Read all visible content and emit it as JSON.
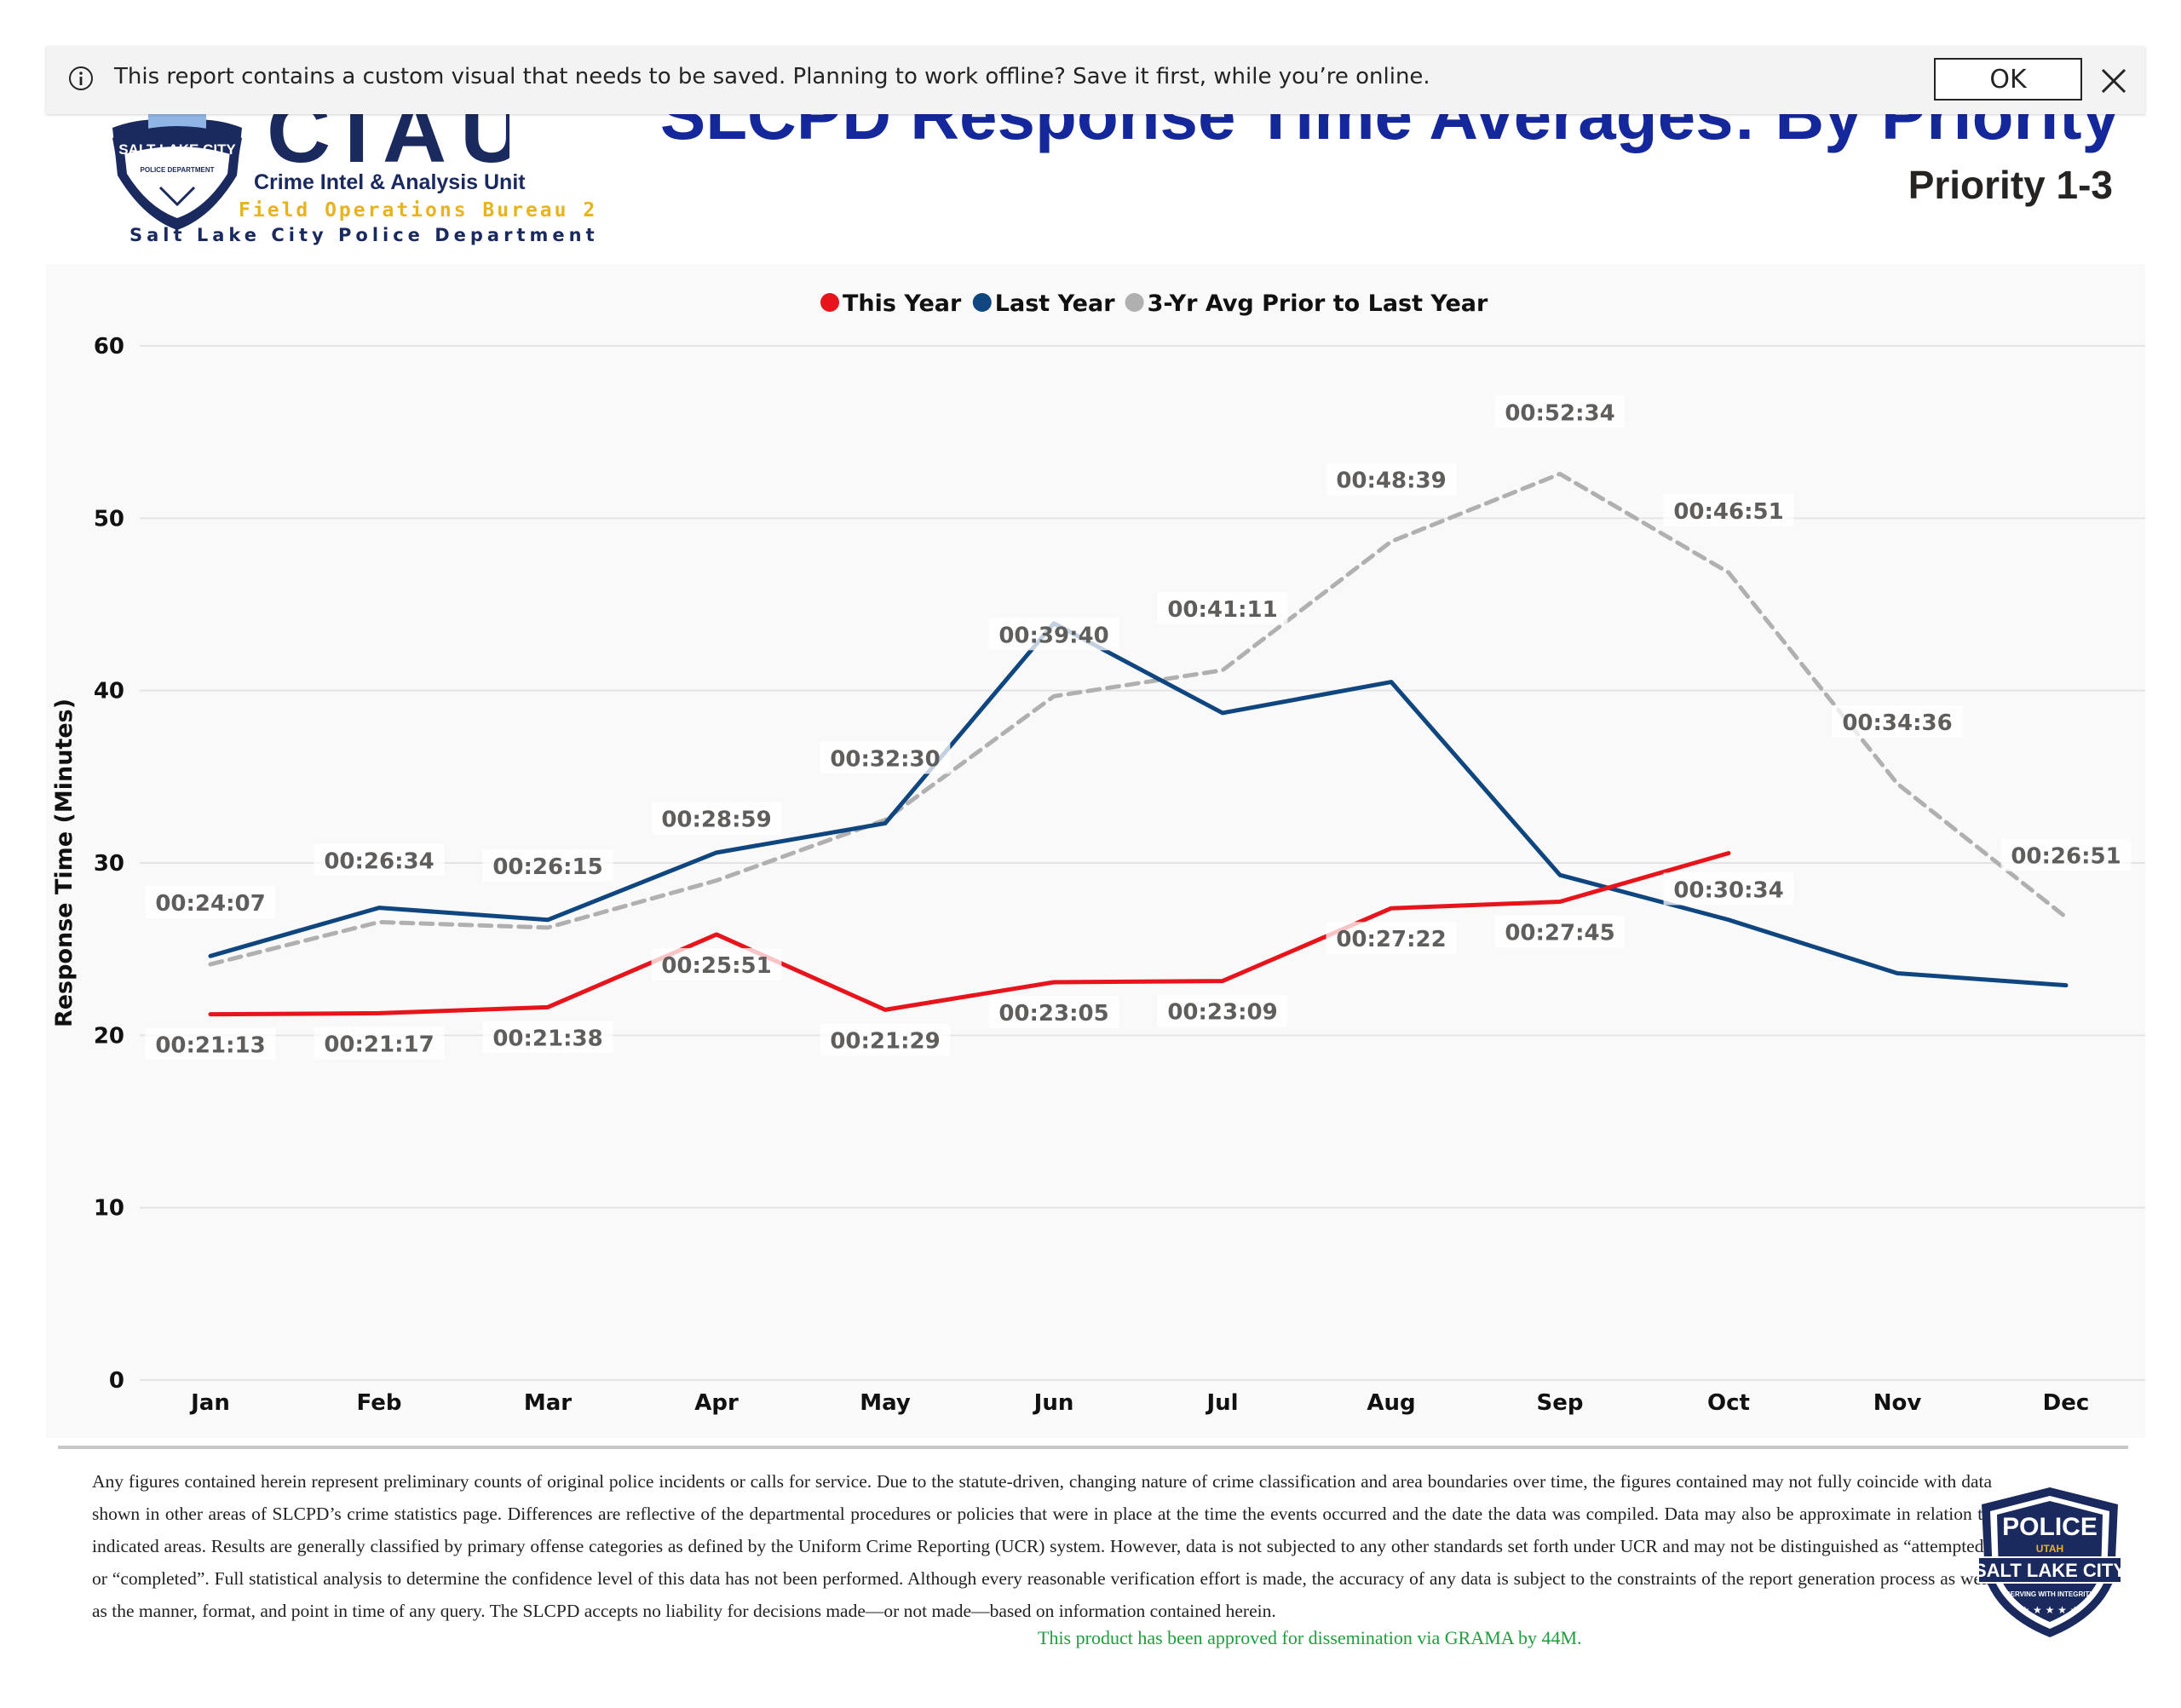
{
  "notification": {
    "message": "This report contains a custom visual that needs to be saved. Planning to work offline? Save it first, while you’re online.",
    "ok_label": "OK"
  },
  "header": {
    "logo_acronym": "CIAU",
    "logo_badge_text": "SALT LAKE CITY",
    "logo_badge_sub": "POLICE DEPARTMENT",
    "unit_name": "Crime Intel & Analysis Unit",
    "bureau": "Field Operations Bureau 2",
    "department": "Salt Lake City Police Department",
    "title": "SLCPD Response Time Averages: By Priority",
    "subtitle": "Priority 1-3"
  },
  "chart_data": {
    "type": "line",
    "ylabel": "Response Time (Minutes)",
    "ylim": [
      0,
      60
    ],
    "yticks": [
      0,
      10,
      20,
      30,
      40,
      50,
      60
    ],
    "grid": true,
    "legend_position": "top-center",
    "categories": [
      "Jan",
      "Feb",
      "Mar",
      "Apr",
      "May",
      "Jun",
      "Jul",
      "Aug",
      "Sep",
      "Oct",
      "Nov",
      "Dec"
    ],
    "series": [
      {
        "name": "This Year",
        "color": "#e8141c",
        "style": "solid",
        "values": [
          21.22,
          21.28,
          21.63,
          25.85,
          21.48,
          23.08,
          23.15,
          27.37,
          27.75,
          30.57,
          null,
          null
        ],
        "labels": [
          "00:21:13",
          "00:21:17",
          "00:21:38",
          "00:25:51",
          "00:21:29",
          "00:23:05",
          "00:23:09",
          "00:27:22",
          "00:27:45",
          "00:30:34",
          null,
          null
        ]
      },
      {
        "name": "Last Year",
        "color": "#0f4680",
        "style": "solid",
        "values": [
          24.6,
          27.4,
          26.7,
          30.6,
          32.3,
          43.9,
          38.7,
          40.5,
          29.3,
          26.7,
          23.6,
          22.9
        ],
        "labels": [
          null,
          null,
          null,
          null,
          null,
          null,
          null,
          null,
          null,
          null,
          null,
          null
        ]
      },
      {
        "name": "3-Yr Avg Prior to Last Year",
        "color": "#b0b0b0",
        "style": "dashed",
        "values": [
          24.12,
          26.57,
          26.25,
          28.98,
          32.5,
          39.67,
          41.18,
          48.65,
          52.57,
          46.85,
          34.6,
          26.85
        ],
        "labels": [
          "00:24:07",
          "00:26:34",
          "00:26:15",
          "00:28:59",
          "00:32:30",
          "00:39:40",
          "00:41:11",
          "00:48:39",
          "00:52:34",
          "00:46:51",
          "00:34:36",
          "00:26:51"
        ]
      }
    ]
  },
  "footer": {
    "disclaimer": "Any figures contained herein represent preliminary counts of original police incidents or calls for service. Due to the statute-driven, changing nature of crime classification and area boundaries over time, the figures contained may not fully coincide with data shown in other areas of SLCPD’s crime statistics page. Differences are reflective of the departmental procedures or policies that were in place at the time the events occurred and the date the data was compiled. Data may also be approximate in relation to indicated areas. Results are generally classified by primary offense categories as defined by the Uniform Crime Reporting (UCR) system. However, data is not subjected to any other standards set forth under UCR and may not be distinguished as “attempted” or “completed”. Full statistical analysis to determine the confidence level of this data has not been performed. Although every reasonable verification effort is made, the accuracy of any data is subject to the constraints of the report generation process as well as the manner, format, and point in time of any query. The SLCPD accepts no liability for decisions made—or not made—based on information contained herein.",
    "approval": "This product has been approved for dissemination via GRAMA by 44M.",
    "badge_top": "POLICE",
    "badge_state": "UTAH",
    "badge_city": "SALT LAKE CITY",
    "badge_motto": "SERVING WITH INTEGRITY"
  }
}
